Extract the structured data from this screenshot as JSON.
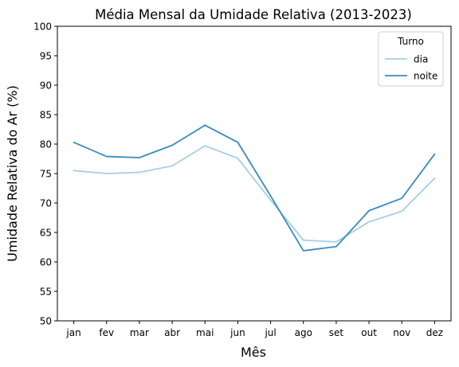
{
  "chart_data": {
    "type": "line",
    "title": "Média Mensal da Umidade Relativa (2013-2023)",
    "xlabel": "Mês",
    "ylabel": "Umidade Relativa do Ar (%)",
    "categories": [
      "jan",
      "fev",
      "mar",
      "abr",
      "mai",
      "jun",
      "jul",
      "ago",
      "set",
      "out",
      "nov",
      "dez"
    ],
    "ylim": [
      50,
      100
    ],
    "yticks": [
      "50",
      "55",
      "60",
      "65",
      "70",
      "75",
      "80",
      "85",
      "90",
      "95",
      "100"
    ],
    "grid": false,
    "legend": {
      "title": "Turno",
      "placement": "top-right"
    },
    "series": [
      {
        "name": "dia",
        "color": "#a6cee3",
        "values": [
          75.5,
          75.0,
          75.2,
          76.3,
          79.7,
          77.6,
          70.5,
          63.7,
          63.4,
          66.8,
          68.6,
          74.2
        ]
      },
      {
        "name": "noite",
        "color": "#3a8bbf",
        "values": [
          80.3,
          77.9,
          77.7,
          79.8,
          83.2,
          80.3,
          71.2,
          61.9,
          62.6,
          68.7,
          70.8,
          78.3
        ]
      }
    ]
  }
}
